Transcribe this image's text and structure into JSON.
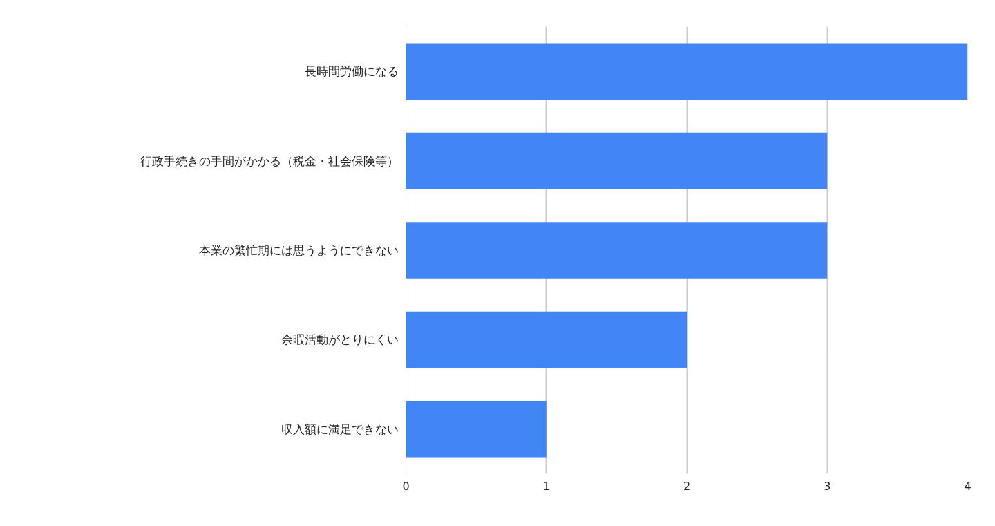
{
  "chart_data": {
    "type": "bar",
    "orientation": "horizontal",
    "categories": [
      "長時間労働になる",
      "行政手続きの手間がかかる（税金・社会保険等）",
      "本業の繁忙期には思うようにできない",
      "余暇活動がとりにくい",
      "収入額に満足できない"
    ],
    "values": [
      4,
      3,
      3,
      2,
      1
    ],
    "color": "#4285f4",
    "xlim": [
      0,
      4
    ],
    "xticks": [
      0,
      1,
      2,
      3,
      4
    ],
    "grid": "x"
  }
}
